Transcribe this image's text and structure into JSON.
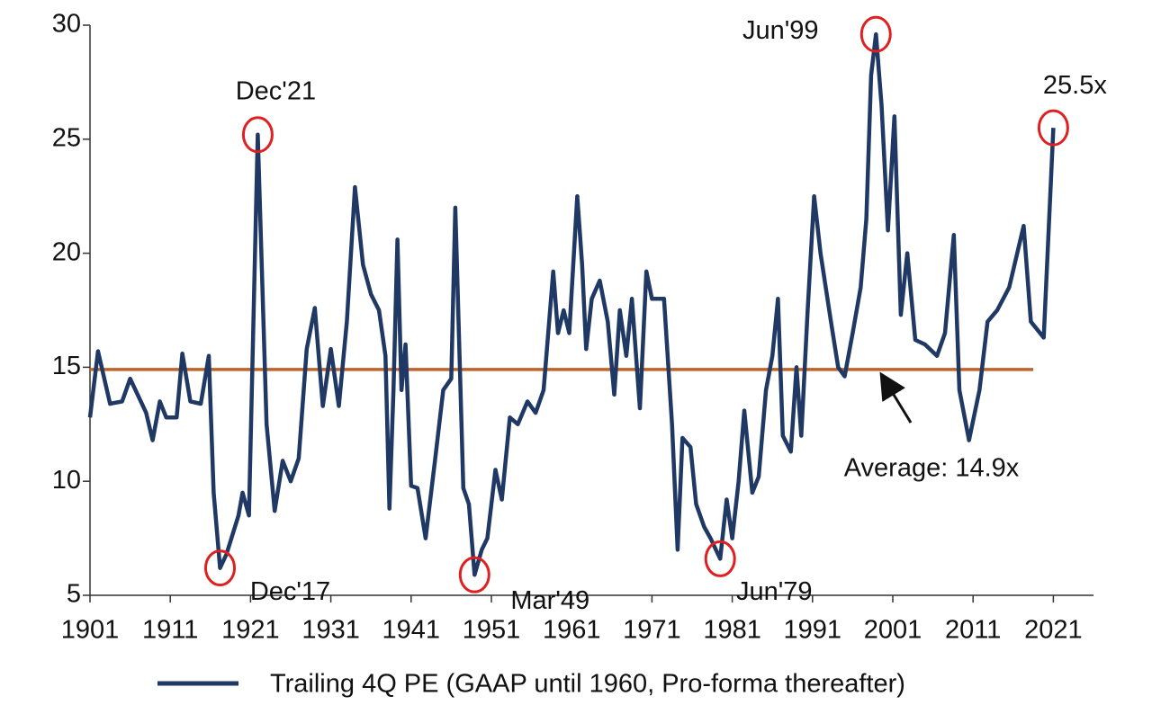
{
  "chart_data": {
    "type": "line",
    "xlim": [
      1901,
      2026
    ],
    "ylim": [
      5,
      30
    ],
    "xticks": [
      1901,
      1911,
      1921,
      1931,
      1941,
      1951,
      1961,
      1971,
      1981,
      1991,
      2001,
      2011,
      2021
    ],
    "yticks": [
      5,
      10,
      15,
      20,
      25,
      30
    ],
    "series": [
      {
        "name": "Trailing 4Q PE (GAAP until 1960, Pro-forma thereafter)",
        "color": "#1f3864",
        "x": [
          1901,
          1902,
          1903.5,
          1905,
          1906,
          1908,
          1908.8,
          1909.7,
          1910.5,
          1911.8,
          1912.5,
          1913.5,
          1914.8,
          1915.8,
          1916.4,
          1917.2,
          1918,
          1919.5,
          1920,
          1920.8,
          1921.9,
          1923,
          1924,
          1925,
          1926,
          1927,
          1928,
          1929,
          1930,
          1931,
          1932,
          1933,
          1934,
          1935,
          1936,
          1937,
          1937.8,
          1938.3,
          1938.8,
          1939.3,
          1939.8,
          1940.3,
          1941,
          1941.8,
          1942.8,
          1944,
          1945,
          1946,
          1946.5,
          1947.5,
          1948.2,
          1948.9,
          1949.8,
          1950.5,
          1951.5,
          1952.3,
          1953.3,
          1954.3,
          1955.5,
          1956.5,
          1957.5,
          1958.7,
          1959.3,
          1960,
          1960.7,
          1961.7,
          1962.3,
          1962.8,
          1963.5,
          1964.5,
          1965.5,
          1966.3,
          1967,
          1967.8,
          1968.5,
          1969.5,
          1970.3,
          1971,
          1972.5,
          1973.5,
          1974.2,
          1974.8,
          1975.8,
          1976.5,
          1977.5,
          1978.3,
          1979.5,
          1980.3,
          1981,
          1981.8,
          1982.5,
          1983.5,
          1984.3,
          1985.2,
          1986,
          1986.7,
          1987.3,
          1988.3,
          1989,
          1989.6,
          1990.4,
          1991.2,
          1992,
          1993.3,
          1994.2,
          1995,
          1996,
          1997,
          1997.7,
          1998.3,
          1998.9,
          1999.6,
          2000.4,
          2001.2,
          2002,
          2002.8,
          2003.8,
          2005,
          2006.5,
          2007.5,
          2008.6,
          2009.3,
          2010.5,
          2011.8,
          2012.8,
          2014,
          2015.5,
          2017.3,
          2018.2,
          2019.8,
          2021
        ],
        "values": [
          12.8,
          15.7,
          13.4,
          13.5,
          14.5,
          13,
          11.8,
          13.5,
          12.8,
          12.8,
          15.6,
          13.5,
          13.4,
          15.5,
          9.5,
          6.2,
          6.8,
          8.5,
          9.5,
          8.5,
          25.2,
          12.5,
          8.7,
          10.9,
          10,
          11,
          15.8,
          17.6,
          13.3,
          15.8,
          13.3,
          17,
          22.9,
          19.5,
          18.2,
          17.5,
          15.5,
          8.8,
          14,
          20.6,
          14,
          16,
          9.8,
          9.7,
          7.5,
          11,
          14,
          14.5,
          22,
          9.7,
          9,
          5.9,
          7,
          7.5,
          10.5,
          9.2,
          12.8,
          12.5,
          13.5,
          13,
          14,
          19.2,
          16.5,
          17.5,
          16.5,
          22.5,
          19.5,
          15.8,
          18,
          18.8,
          17,
          13.8,
          17.5,
          15.5,
          18,
          13.2,
          19.2,
          18,
          18,
          12.5,
          7,
          11.9,
          11.5,
          9,
          8,
          7.5,
          6.6,
          9.2,
          7.5,
          10,
          13.1,
          9.5,
          10.2,
          14,
          15.5,
          18,
          12,
          11.3,
          15,
          12,
          17.5,
          22.5,
          20,
          17,
          15,
          14.6,
          16.5,
          18.5,
          21.5,
          27.8,
          29.6,
          26.5,
          21,
          26,
          17.3,
          20,
          16.2,
          16,
          15.5,
          16.5,
          20.8,
          14,
          11.8,
          14,
          17,
          17.5,
          18.5,
          21.2,
          17,
          16.3,
          25.5
        ]
      }
    ],
    "average": {
      "value": 14.9,
      "color": "#c0622a",
      "label": "Average: 14.9x"
    },
    "annotations": [
      {
        "text": "Dec'21",
        "x": 1921.9,
        "y": 25.2
      },
      {
        "text": "Dec'17",
        "x": 1917.2,
        "y": 6.2
      },
      {
        "text": "Mar'49",
        "x": 1948.9,
        "y": 5.9
      },
      {
        "text": "Jun'79",
        "x": 1979.5,
        "y": 6.6
      },
      {
        "text": "Jun'99",
        "x": 1998.9,
        "y": 29.6
      },
      {
        "text": "25.5x",
        "x": 2021,
        "y": 25.5
      }
    ],
    "annotation_color": "#e02020"
  }
}
